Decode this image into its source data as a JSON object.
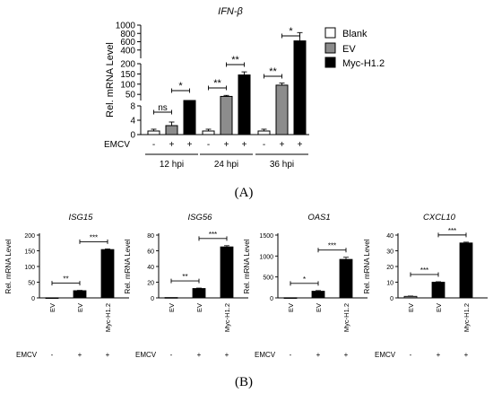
{
  "panel_labels": {
    "a": "(A)",
    "b": "(B)"
  },
  "emcv_label": "EMCV",
  "colors": {
    "blank": "#ffffff",
    "ev": "#8c8c8c",
    "myc": "#000000",
    "axis": "#000000"
  },
  "chart_data": [
    {
      "id": "ifnb",
      "type": "bar",
      "title": "IFN-β",
      "ylabel": "Rel. mRNA Level",
      "y_axis_break": true,
      "y_segments": [
        {
          "range": [
            0,
            8
          ],
          "ticks": [
            0,
            4,
            8
          ]
        },
        {
          "range": [
            20,
            200
          ],
          "ticks": [
            50,
            100,
            150,
            200
          ]
        },
        {
          "range": [
            200,
            1000
          ],
          "ticks": [
            400,
            600,
            800,
            1000
          ]
        }
      ],
      "legend": {
        "position": "top-right",
        "entries": [
          "Blank",
          "EV",
          "Myc-H1.2"
        ]
      },
      "series": [
        {
          "name": "Blank",
          "values": [
            1.0,
            1.0,
            1.0
          ],
          "errors": [
            0.5,
            0.5,
            0.5
          ]
        },
        {
          "name": "EV",
          "values": [
            2.5,
            40,
            95
          ],
          "errors": [
            1.0,
            5,
            10
          ]
        },
        {
          "name": "Myc-H1.2",
          "values": [
            9,
            145,
            620
          ],
          "errors": [
            1,
            15,
            200
          ]
        }
      ],
      "categories": [
        "12 hpi",
        "24 hpi",
        "36 hpi"
      ],
      "emcv": [
        "-",
        "+",
        "+"
      ],
      "significance": [
        {
          "group": 0,
          "from": 0,
          "to": 1,
          "label": "ns"
        },
        {
          "group": 0,
          "from": 1,
          "to": 2,
          "label": "*"
        },
        {
          "group": 1,
          "from": 0,
          "to": 1,
          "label": "**"
        },
        {
          "group": 1,
          "from": 1,
          "to": 2,
          "label": "**"
        },
        {
          "group": 2,
          "from": 0,
          "to": 1,
          "label": "**"
        },
        {
          "group": 2,
          "from": 1,
          "to": 2,
          "label": "*"
        }
      ]
    },
    {
      "id": "isg15",
      "type": "bar",
      "title": "ISG15",
      "ylabel": "Rel. mRNA Level",
      "ylim": [
        0,
        200
      ],
      "yticks": [
        0,
        50,
        100,
        150,
        200
      ],
      "categories": [
        "EV",
        "EV",
        "Myc-H1.2"
      ],
      "emcv": [
        "-",
        "+",
        "+"
      ],
      "values": [
        0.5,
        23,
        154
      ],
      "errors": [
        0,
        1,
        2
      ],
      "fills": [
        "#000000",
        "#000000",
        "#000000"
      ],
      "significance": [
        {
          "from": 0,
          "to": 1,
          "label": "**"
        },
        {
          "from": 1,
          "to": 2,
          "label": "***"
        }
      ]
    },
    {
      "id": "isg56",
      "type": "bar",
      "title": "ISG56",
      "ylabel": "Rel. mRNA Level",
      "ylim": [
        0,
        80
      ],
      "yticks": [
        0,
        20,
        40,
        60,
        80
      ],
      "categories": [
        "EV",
        "EV",
        "Myc-H1.2"
      ],
      "emcv": [
        "-",
        "+",
        "+"
      ],
      "values": [
        0.5,
        12,
        65
      ],
      "errors": [
        0,
        0.5,
        1.5
      ],
      "fills": [
        "#000000",
        "#000000",
        "#000000"
      ],
      "significance": [
        {
          "from": 0,
          "to": 1,
          "label": "**"
        },
        {
          "from": 1,
          "to": 2,
          "label": "***"
        }
      ]
    },
    {
      "id": "oas1",
      "type": "bar",
      "title": "OAS1",
      "ylabel": "Rel. mRNA Level",
      "ylim": [
        0,
        1500
      ],
      "yticks": [
        0,
        500,
        1000,
        1500
      ],
      "categories": [
        "EV",
        "EV",
        "Myc-H1.2"
      ],
      "emcv": [
        "-",
        "+",
        "+"
      ],
      "values": [
        5,
        160,
        920
      ],
      "errors": [
        0,
        15,
        50
      ],
      "fills": [
        "#000000",
        "#000000",
        "#000000"
      ],
      "significance": [
        {
          "from": 0,
          "to": 1,
          "label": "*"
        },
        {
          "from": 1,
          "to": 2,
          "label": "***"
        }
      ]
    },
    {
      "id": "cxcl10",
      "type": "bar",
      "title": "CXCL10",
      "ylabel": "Rel. mRNA Level",
      "ylim": [
        0,
        40
      ],
      "yticks": [
        0,
        10,
        20,
        30,
        40
      ],
      "categories": [
        "EV",
        "EV",
        "Myc-H1.2"
      ],
      "emcv": [
        "-",
        "+",
        "+"
      ],
      "values": [
        1,
        10,
        35
      ],
      "errors": [
        0.2,
        0.3,
        0.5
      ],
      "fills": [
        "#8c8c8c",
        "#000000",
        "#000000"
      ],
      "significance": [
        {
          "from": 0,
          "to": 1,
          "label": "***"
        },
        {
          "from": 1,
          "to": 2,
          "label": "***"
        }
      ]
    }
  ]
}
